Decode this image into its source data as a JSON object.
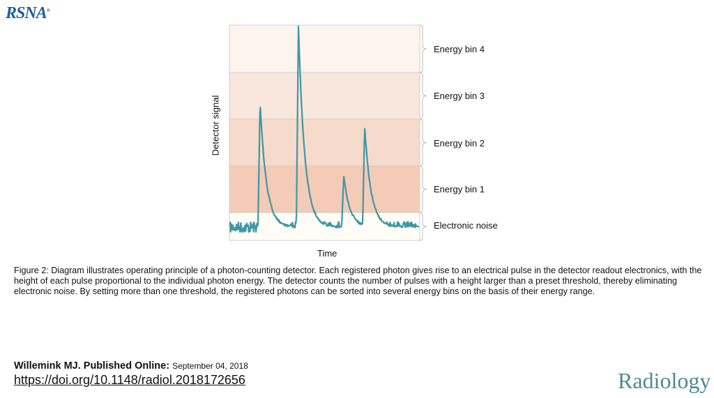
{
  "logo": {
    "text": "RSNA"
  },
  "figure": {
    "y_axis_label": "Detector signal",
    "x_axis_label": "Time",
    "bins": [
      "Energy bin 4",
      "Energy bin 3",
      "Energy bin 2",
      "Energy bin 1",
      "Electronic noise"
    ],
    "colors": {
      "bin4": "#fdf4ee",
      "bin3": "#f9e6dc",
      "bin2": "#f6dacb",
      "bin1": "#f3cbb6",
      "noise": "#fffdf5",
      "signal": "#3e97a5"
    }
  },
  "caption": "Figure 2: Diagram illustrates operating principle of a photon-counting detector. Each registered photon gives rise to an electrical pulse in the detector readout electronics, with the height of each pulse proportional to the individual photon energy. The detector counts the number of pulses with a height larger than a preset threshold, thereby eliminating electronic noise. By setting more than one threshold, the registered photons can be sorted into several energy bins on the basis of their energy range.",
  "citation": {
    "author": "Willemink MJ. Published Online:",
    "date": "September 04, 2018",
    "doi": "https://doi.org/10.1148/radiol.2018172656"
  },
  "journal": "Radiology"
}
